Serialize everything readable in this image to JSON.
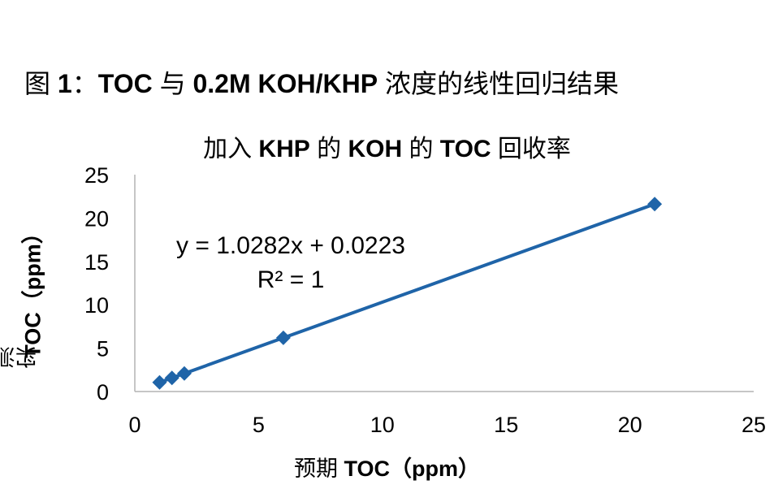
{
  "figure_title": {
    "prefix": "图 ",
    "number": "1",
    "colon": "：",
    "part1": "TOC",
    "part2": " 与 ",
    "part3": "0.2M KOH/KHP",
    "part4": " 浓度的线性回归结果"
  },
  "chart_data": {
    "type": "scatter",
    "title_parts": [
      "加入 ",
      "KHP",
      " 的 ",
      "KOH",
      " 的 ",
      "TOC",
      " 回收率"
    ],
    "xlabel_parts": [
      "预期 ",
      "TOC（ppm）"
    ],
    "ylabel_parts": [
      "实测 ",
      "TOC（ppm）"
    ],
    "xlim": [
      0,
      25
    ],
    "ylim": [
      0,
      25
    ],
    "x_ticks": [
      "0",
      "5",
      "10",
      "15",
      "20",
      "25"
    ],
    "y_ticks": [
      "0",
      "5",
      "10",
      "15",
      "20",
      "25"
    ],
    "series": [
      {
        "x": [
          1,
          1.5,
          2,
          6,
          21
        ],
        "y": [
          1.05,
          1.57,
          2.08,
          6.19,
          21.61
        ],
        "color": "#1F64A8",
        "marker": "diamond",
        "line": "connected"
      }
    ],
    "annotations": {
      "equation": "y = 1.0282x + 0.0223",
      "r_squared": "R² = 1"
    },
    "grid": false
  }
}
